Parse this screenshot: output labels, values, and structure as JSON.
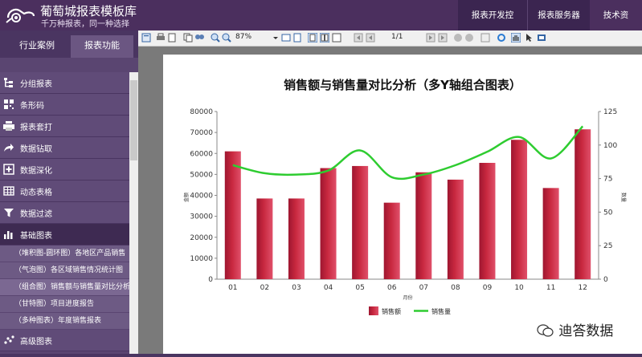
{
  "header": {
    "title": "葡萄城报表模板库",
    "subtitle": "千万种报表，同一种选择",
    "nav": [
      "报表开发控件",
      "报表服务器",
      "技术资料"
    ]
  },
  "sidebar": {
    "tabs": [
      "行业案例",
      "报表功能"
    ],
    "items": [
      {
        "label": "分组报表",
        "icon": "tree-icon"
      },
      {
        "label": "条形码",
        "icon": "qrcode-icon"
      },
      {
        "label": "报表套打",
        "icon": "printer-icon"
      },
      {
        "label": "数据钻取",
        "icon": "arrow-icon"
      },
      {
        "label": "数据深化",
        "icon": "plus-box-icon"
      },
      {
        "label": "动态表格",
        "icon": "table-icon"
      },
      {
        "label": "数据过滤",
        "icon": "filter-icon"
      },
      {
        "label": "基础图表",
        "icon": "bar-chart-icon"
      }
    ],
    "subitems": [
      "（堆积图-圆环图）各地区产品销售",
      "（气泡图）各区域销售情况统计图",
      "（组合图）销售额与销售量对比分析",
      "（甘特图）项目进度报告",
      "（多种图表）年度销售报表"
    ],
    "last_item": {
      "label": "高级图表",
      "icon": "scatter-icon"
    }
  },
  "toolbar": {
    "zoom": "87%",
    "page": "1/1"
  },
  "watermark": "迪答数据",
  "chart_data": {
    "type": "bar",
    "title": "销售额与销售量对比分析（多Y轴组合图表）",
    "xlabel": "月份",
    "ylabel": "金额",
    "y2label": "数量",
    "categories": [
      "01",
      "02",
      "03",
      "04",
      "05",
      "06",
      "07",
      "08",
      "09",
      "10",
      "11",
      "12"
    ],
    "ylim": [
      0,
      80000
    ],
    "y2lim": [
      0,
      125
    ],
    "yticks": [
      0,
      10000,
      20000,
      30000,
      40000,
      50000,
      60000,
      70000,
      80000
    ],
    "y2ticks": [
      0,
      25,
      50,
      75,
      100,
      125
    ],
    "series": [
      {
        "name": "销售额",
        "type": "bar",
        "axis": "left",
        "color": "#c8283f",
        "values": [
          61000,
          38500,
          38500,
          53000,
          54000,
          36500,
          51000,
          47500,
          55500,
          66500,
          43500,
          71500
        ]
      },
      {
        "name": "销售量",
        "type": "line",
        "axis": "right",
        "color": "#2ecc30",
        "values": [
          85,
          79,
          78,
          81,
          96,
          76,
          78,
          85,
          95,
          106,
          90,
          114
        ]
      }
    ],
    "legend": "bottom",
    "grid": false
  }
}
